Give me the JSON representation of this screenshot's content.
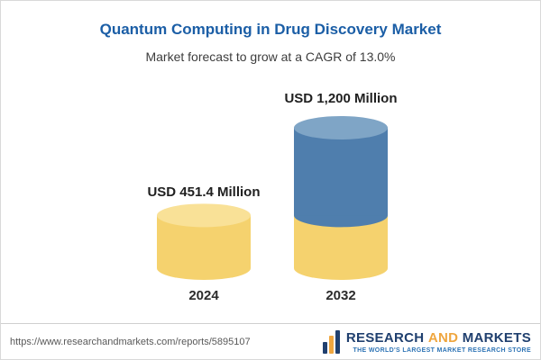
{
  "header": {
    "title": "Quantum Computing in Drug Discovery Market",
    "subtitle": "Market forecast to grow at a CAGR of 13.0%"
  },
  "chart_data": {
    "type": "bar",
    "style": "3d-cylinder",
    "title": "Quantum Computing in Drug Discovery Market",
    "subtitle": "Market forecast to grow at a CAGR of 13.0%",
    "unit": "USD Million",
    "cagr": "13.0%",
    "categories": [
      "2024",
      "2032"
    ],
    "values": [
      451.4,
      1200
    ],
    "ylim": [
      0,
      1300
    ],
    "grid": false,
    "legend": false,
    "bars": [
      {
        "category": "2024",
        "label": "USD 451.4 Million",
        "total": 451.4,
        "segments": [
          {
            "value": 451.4,
            "color": "#f5d26e",
            "top_color": "#f9e197"
          }
        ]
      },
      {
        "category": "2032",
        "label": "USD 1,200 Million",
        "total": 1200,
        "segments": [
          {
            "value": 451.4,
            "color": "#f5d26e"
          },
          {
            "value": 748.6,
            "color": "#4f7ead",
            "top_color": "#7fa5c6"
          }
        ]
      }
    ],
    "colors": {
      "title_blue": "#1b5ea6",
      "yellow_body": "#f5d26e",
      "yellow_top": "#f9e197",
      "blue_body": "#4f7ead",
      "blue_top": "#7fa5c6"
    }
  },
  "footer": {
    "url": "https://www.researchandmarkets.com/reports/5895107",
    "logo": {
      "research": "RESEARCH",
      "and": "AND",
      "markets": "MARKETS",
      "tagline": "THE WORLD'S LARGEST MARKET RESEARCH STORE"
    }
  }
}
